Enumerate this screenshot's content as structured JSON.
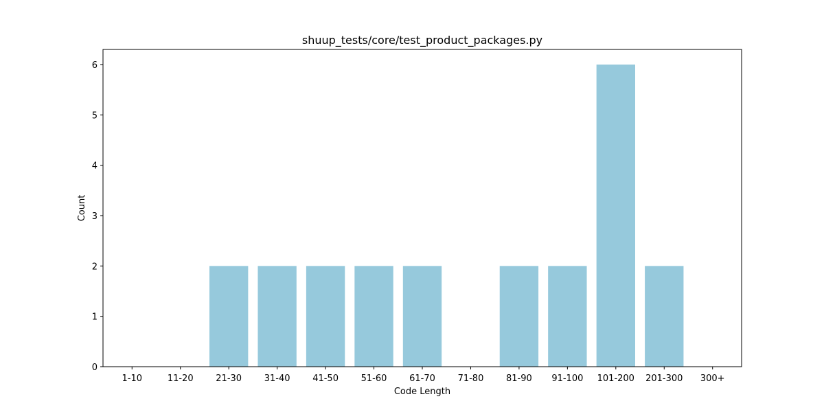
{
  "chart_data": {
    "type": "bar",
    "title": "shuup_tests/core/test_product_packages.py",
    "xlabel": "Code Length",
    "ylabel": "Count",
    "categories": [
      "1-10",
      "11-20",
      "21-30",
      "31-40",
      "41-50",
      "51-60",
      "61-70",
      "71-80",
      "81-90",
      "91-100",
      "101-200",
      "201-300",
      "300+"
    ],
    "values": [
      0,
      0,
      2,
      2,
      2,
      2,
      2,
      0,
      2,
      2,
      6,
      2,
      0
    ],
    "ylim": [
      0,
      6.3
    ],
    "yticks": [
      0,
      1,
      2,
      3,
      4,
      5,
      6
    ],
    "grid": false,
    "bar_color": "#96c9dc"
  }
}
